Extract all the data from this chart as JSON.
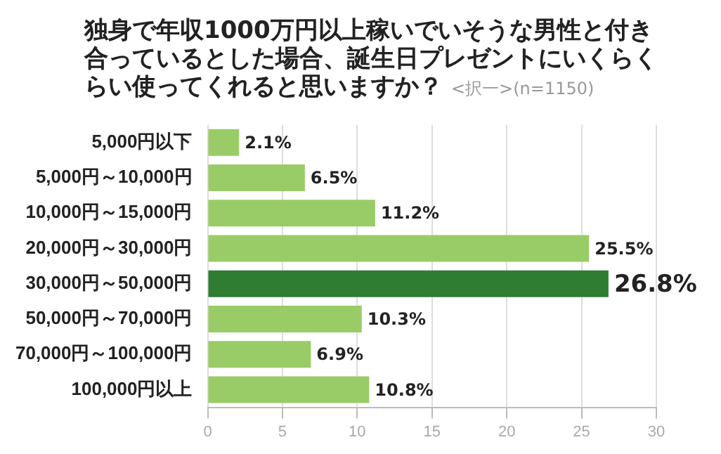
{
  "chart_data": {
    "type": "bar",
    "orientation": "horizontal",
    "title": "独身で年収1000万円以上稼いでいそうな男性と付き合っているとした場合、誕生日プレゼントにいくらくらい使ってくれると思いますか？",
    "subtitle": "<択一>(n=1150)",
    "categories": [
      "5,000円以下",
      "5,000円～10,000円",
      "10,000円～15,000円",
      "20,000円～30,000円",
      "30,000円～50,000円",
      "50,000円～70,000円",
      "70,000円～100,000円",
      "100,000円以上"
    ],
    "values": [
      2.1,
      6.5,
      11.2,
      25.5,
      26.8,
      10.3,
      6.9,
      10.8
    ],
    "value_labels": [
      "2.1%",
      "6.5%",
      "11.2%",
      "25.5%",
      "26.8%",
      "10.3%",
      "6.9%",
      "10.8%"
    ],
    "colors": [
      "#99cc66",
      "#99cc66",
      "#99cc66",
      "#99cc66",
      "#2e7d32",
      "#99cc66",
      "#99cc66",
      "#99cc66"
    ],
    "xlim": [
      0,
      30
    ],
    "xticks": [
      0,
      5,
      10,
      15,
      20,
      25,
      30
    ],
    "grid": "x",
    "legend": false
  }
}
